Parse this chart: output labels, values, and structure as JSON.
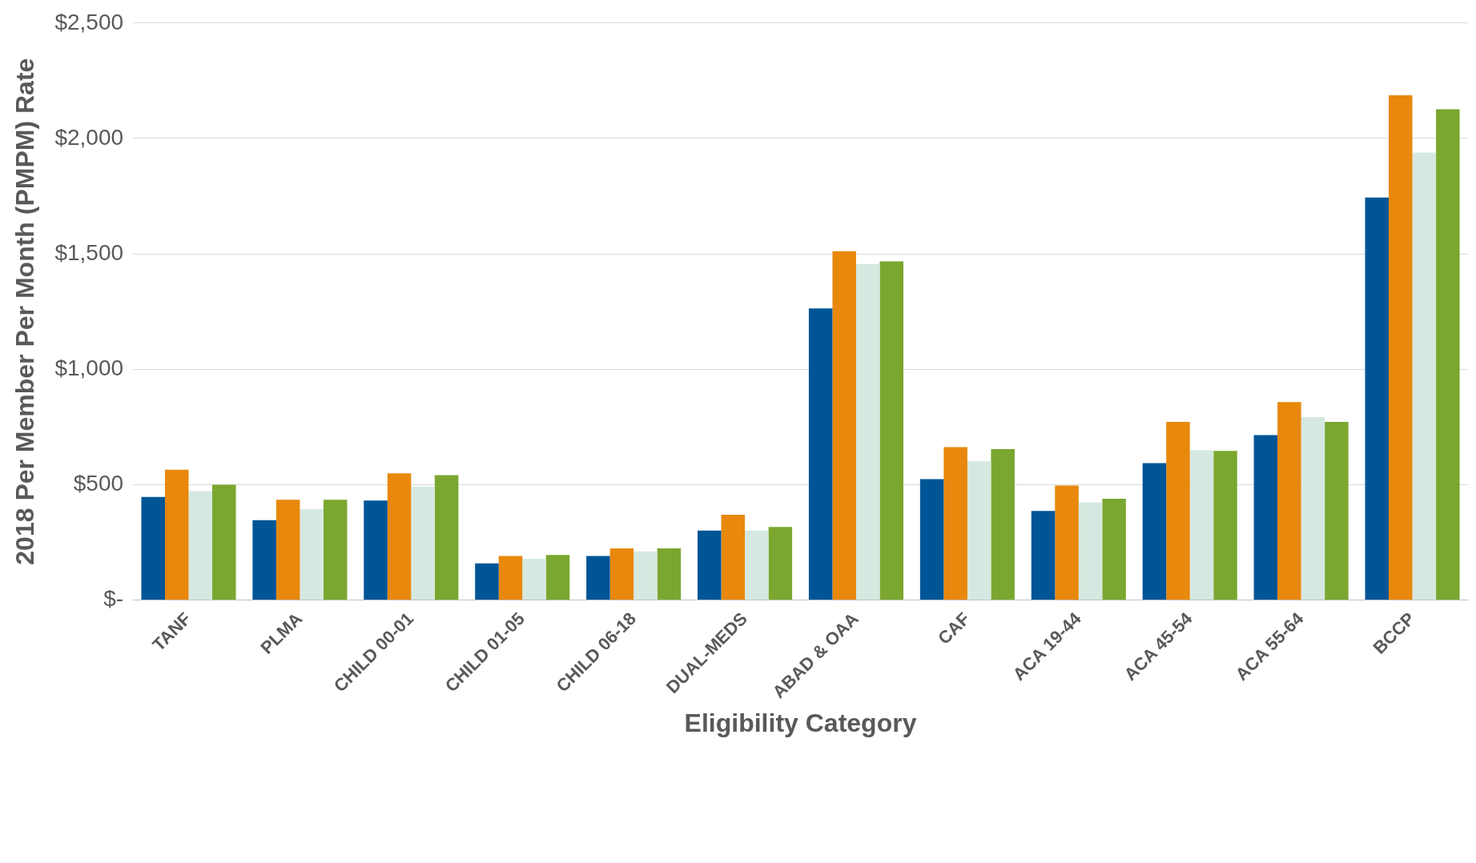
{
  "chart_data": {
    "type": "bar",
    "xlabel": "Eligibility Category",
    "ylabel": "2018 Per Member Per Month (PMPM) Rate",
    "categories": [
      "TANF",
      "PLMA",
      "CHILD 00-01",
      "CHILD 01-05",
      "CHILD 06-18",
      "DUAL-MEDS",
      "ABAD & OAA",
      "CAF",
      "ACA 19-44",
      "ACA 45-54",
      "ACA 55-64",
      "BCCP"
    ],
    "series": [
      {
        "color": "#005596",
        "values": [
          447,
          346,
          431,
          159,
          191,
          301,
          1264,
          524,
          386,
          593,
          715,
          1744
        ]
      },
      {
        "color": "#e8880c",
        "values": [
          565,
          435,
          549,
          191,
          224,
          370,
          1512,
          663,
          496,
          772,
          858,
          2187
        ]
      },
      {
        "color": "#d6e9e1",
        "values": [
          472,
          394,
          492,
          179,
          211,
          301,
          1455,
          602,
          423,
          650,
          793,
          1939
        ]
      },
      {
        "color": "#7aa72f",
        "values": [
          500,
          435,
          541,
          195,
          224,
          317,
          1467,
          654,
          439,
          646,
          772,
          2126
        ]
      }
    ],
    "ylim": [
      0,
      2500
    ],
    "yticks": [
      {
        "value": 0,
        "label": "$-"
      },
      {
        "value": 500,
        "label": "$500"
      },
      {
        "value": 1000,
        "label": "$1,000"
      },
      {
        "value": 1500,
        "label": "$1,500"
      },
      {
        "value": 2000,
        "label": "$2,000"
      },
      {
        "value": 2500,
        "label": "$2,500"
      }
    ],
    "grid": "y",
    "legend": false
  }
}
